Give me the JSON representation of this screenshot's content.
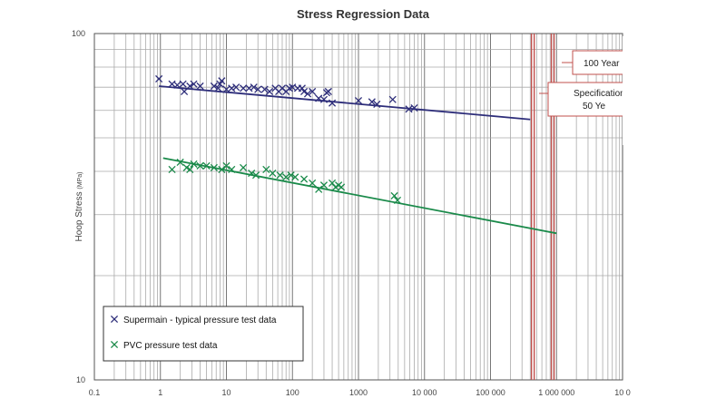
{
  "chart_data": {
    "type": "scatter",
    "title": "Stress Regression Data",
    "ylabel": "Hoop Stress",
    "ylabel_unit": "(MPa)",
    "xlabel": "",
    "x_scale": "log",
    "y_scale": "log",
    "xlim": [
      0.1,
      10000000
    ],
    "ylim": [
      10,
      100
    ],
    "grid": true,
    "legend_position": "bottom-left",
    "x_ticks": [
      {
        "value": 0.1,
        "label": "0.1"
      },
      {
        "value": 1,
        "label": "1"
      },
      {
        "value": 10,
        "label": "10"
      },
      {
        "value": 100,
        "label": "100"
      },
      {
        "value": 1000,
        "label": "1000"
      },
      {
        "value": 10000,
        "label": "10 000"
      },
      {
        "value": 100000,
        "label": "100 000"
      },
      {
        "value": 1000000,
        "label": "1 000 000"
      },
      {
        "value": 10000000,
        "label": "10 0"
      }
    ],
    "y_ticks": [
      {
        "value": 10,
        "label": "10"
      },
      {
        "value": 100,
        "label": "100"
      }
    ],
    "series": [
      {
        "name": "Supermain - typical pressure test data",
        "color": "#2e2e7a",
        "marker": "x",
        "points": [
          [
            0.95,
            74
          ],
          [
            1.5,
            71.5
          ],
          [
            1.8,
            71
          ],
          [
            2.3,
            68
          ],
          [
            2.2,
            71.5
          ],
          [
            2.8,
            70.5
          ],
          [
            3.2,
            71.5
          ],
          [
            4.0,
            70.5
          ],
          [
            6.5,
            70.5
          ],
          [
            7.5,
            69.5
          ],
          [
            8.0,
            71.5
          ],
          [
            8.5,
            73
          ],
          [
            10,
            69
          ],
          [
            12,
            69.5
          ],
          [
            14,
            70
          ],
          [
            18,
            69.5
          ],
          [
            22,
            69.5
          ],
          [
            26,
            70
          ],
          [
            30,
            69
          ],
          [
            38,
            69
          ],
          [
            45,
            68
          ],
          [
            55,
            69.5
          ],
          [
            62,
            68
          ],
          [
            70,
            69.5
          ],
          [
            80,
            68
          ],
          [
            90,
            69.5
          ],
          [
            100,
            70
          ],
          [
            120,
            69.5
          ],
          [
            140,
            69.5
          ],
          [
            150,
            68
          ],
          [
            170,
            67
          ],
          [
            200,
            68
          ],
          [
            250,
            65
          ],
          [
            300,
            64.5
          ],
          [
            330,
            67.5
          ],
          [
            350,
            68
          ],
          [
            400,
            63
          ],
          [
            1000,
            64
          ],
          [
            1600,
            63.5
          ],
          [
            1900,
            62.5
          ],
          [
            3300,
            64.5
          ],
          [
            5800,
            60.5
          ],
          [
            7000,
            61
          ]
        ],
        "trendline": {
          "x": [
            0.95,
            400000
          ],
          "y": [
            70.5,
            56.5
          ]
        }
      },
      {
        "name": "PVC pressure test data",
        "color": "#1a8a4a",
        "marker": "x",
        "points": [
          [
            1.5,
            40.5
          ],
          [
            2.0,
            42.5
          ],
          [
            2.5,
            41
          ],
          [
            2.8,
            40.5
          ],
          [
            3.2,
            42
          ],
          [
            4.0,
            41.5
          ],
          [
            5.0,
            41.5
          ],
          [
            6.5,
            41
          ],
          [
            8.5,
            40.5
          ],
          [
            10,
            41.5
          ],
          [
            12,
            40.5
          ],
          [
            18,
            41
          ],
          [
            24,
            39.5
          ],
          [
            28,
            39
          ],
          [
            40,
            40.5
          ],
          [
            50,
            39.5
          ],
          [
            65,
            39
          ],
          [
            80,
            38.5
          ],
          [
            95,
            39
          ],
          [
            110,
            38.5
          ],
          [
            150,
            38
          ],
          [
            200,
            37
          ],
          [
            250,
            35.5
          ],
          [
            300,
            36.5
          ],
          [
            400,
            37
          ],
          [
            450,
            36
          ],
          [
            500,
            36.5
          ],
          [
            550,
            36
          ],
          [
            3500,
            34
          ],
          [
            3900,
            33
          ]
        ],
        "trendline": {
          "x": [
            1.1,
            1000000
          ],
          "y": [
            43.7,
            26.5
          ]
        }
      }
    ],
    "vertical_lines": [
      {
        "x": 438000,
        "color": "#c0504d"
      },
      {
        "x": 876000,
        "color": "#c0504d"
      }
    ],
    "annotations": [
      {
        "text": "100 Year",
        "color": "#c0504d"
      },
      {
        "text": "Specification",
        "text2": "50 Ye",
        "color": "#c0504d"
      }
    ]
  }
}
